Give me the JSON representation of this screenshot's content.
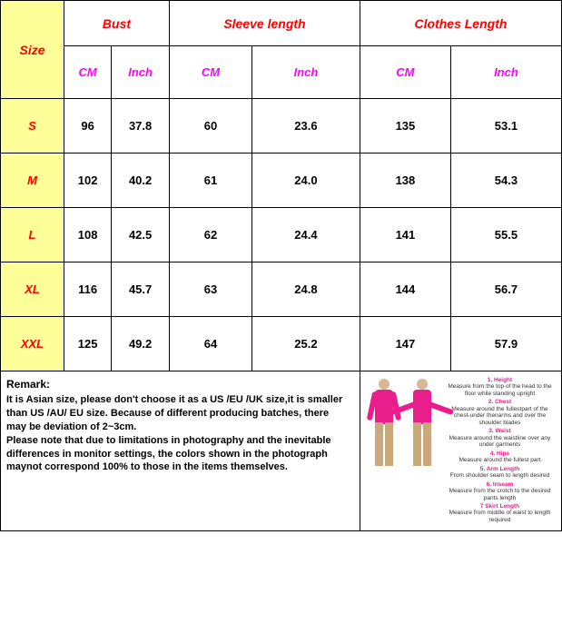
{
  "headers": {
    "size": "Size",
    "groups": [
      "Bust",
      "Sleeve length",
      "Clothes Length"
    ],
    "units": [
      "CM",
      "Inch",
      "CM",
      "Inch",
      "CM",
      "Inch"
    ]
  },
  "rows": [
    {
      "size": "S",
      "vals": [
        "96",
        "37.8",
        "60",
        "23.6",
        "135",
        "53.1"
      ]
    },
    {
      "size": "M",
      "vals": [
        "102",
        "40.2",
        "61",
        "24.0",
        "138",
        "54.3"
      ]
    },
    {
      "size": "L",
      "vals": [
        "108",
        "42.5",
        "62",
        "24.4",
        "141",
        "55.5"
      ]
    },
    {
      "size": "XL",
      "vals": [
        "116",
        "45.7",
        "63",
        "24.8",
        "144",
        "56.7"
      ]
    },
    {
      "size": "XXL",
      "vals": [
        "125",
        "49.2",
        "64",
        "25.2",
        "147",
        "57.9"
      ]
    }
  ],
  "remark": {
    "title": "Remark:",
    "body": "It is Asian size, please don't choose it as a US /EU /UK size,it is smaller than US /AU/ EU size. Because of different producing batches, there may be deviation of 2~3cm.\nPlease note that  due to limitations in photography and the inevitable  differences in monitor settings, the colors shown in the photograph maynot correspond 100% to those in the items themselves."
  },
  "measurements": [
    {
      "num": "1.",
      "name": "Height",
      "desc": "Measure from the top of the head to the floor while standing upright"
    },
    {
      "num": "2.",
      "name": "Chest",
      "desc": "Measure around the fullestpart of the chest-under thenarms and over the shoulder blades"
    },
    {
      "num": "3.",
      "name": "Waist",
      "desc": "Measure around the waistline over any under garments"
    },
    {
      "num": "4.",
      "name": "Hips",
      "desc": "Measure around the fullest part"
    },
    {
      "num": "5.",
      "name": "Arm Length",
      "desc": "From shoulder seam to length desired"
    },
    {
      "num": "6.",
      "name": "Inseam",
      "desc": "Measure from the crotch to the desired pants length"
    },
    {
      "num": "7",
      "name": "Skirt Length",
      "desc": "Measure from middle of waist to length required"
    }
  ],
  "colors": {
    "size_bg": "#ffff99",
    "header_red": "#ff0000",
    "unit_magenta": "#ff00ff",
    "accent_pink": "#e91e8c"
  }
}
